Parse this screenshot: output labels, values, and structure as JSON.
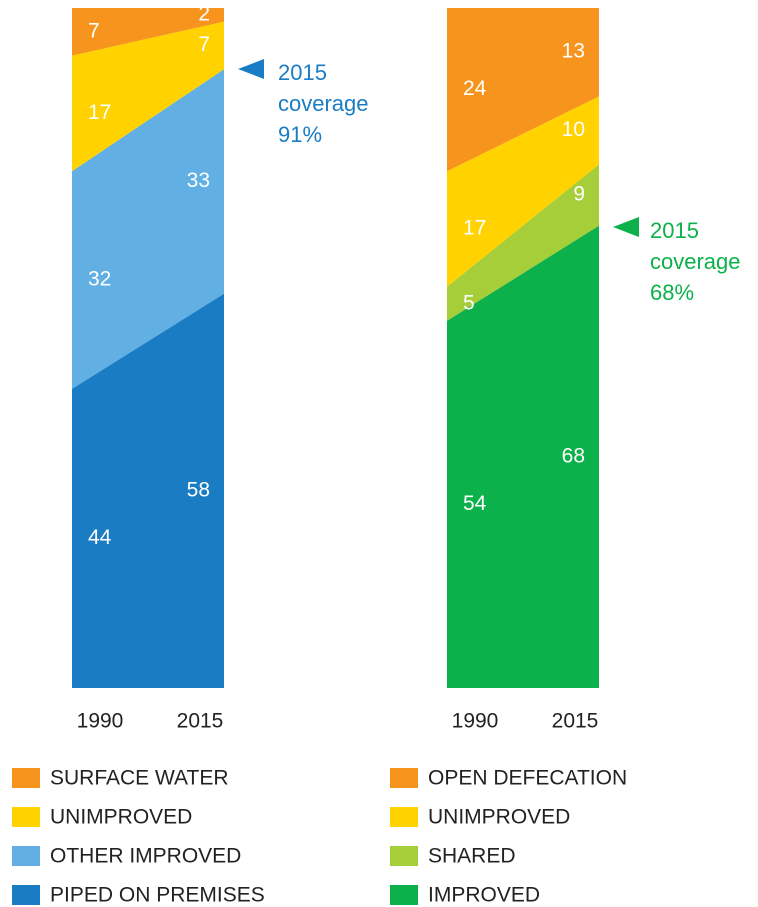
{
  "chart_data": [
    {
      "type": "stacked-area",
      "categories": [
        "1990",
        "2015"
      ],
      "ylim": [
        0,
        100
      ],
      "series": [
        {
          "name": "PIPED ON PREMISES",
          "color": "#1a7dc4",
          "values": [
            44,
            58
          ]
        },
        {
          "name": "OTHER IMPROVED",
          "color": "#62b0e3",
          "values": [
            32,
            33
          ]
        },
        {
          "name": "UNIMPROVED",
          "color": "#ffd200",
          "values": [
            17,
            7
          ]
        },
        {
          "name": "SURFACE WATER",
          "color": "#f7941d",
          "values": [
            7,
            2
          ]
        }
      ],
      "annotation": {
        "lines": [
          "2015",
          "coverage",
          "91%"
        ],
        "color": "#1a7dc4"
      }
    },
    {
      "type": "stacked-area",
      "categories": [
        "1990",
        "2015"
      ],
      "ylim": [
        0,
        100
      ],
      "series": [
        {
          "name": "IMPROVED",
          "color": "#0db14b",
          "values": [
            54,
            68
          ]
        },
        {
          "name": "SHARED",
          "color": "#a6ce39",
          "values": [
            5,
            9
          ]
        },
        {
          "name": "UNIMPROVED",
          "color": "#ffd200",
          "values": [
            17,
            10
          ]
        },
        {
          "name": "OPEN DEFECATION",
          "color": "#f7941d",
          "values": [
            24,
            13
          ]
        }
      ],
      "annotation": {
        "lines": [
          "2015",
          "coverage",
          "68%"
        ],
        "color": "#0db14b"
      }
    }
  ]
}
